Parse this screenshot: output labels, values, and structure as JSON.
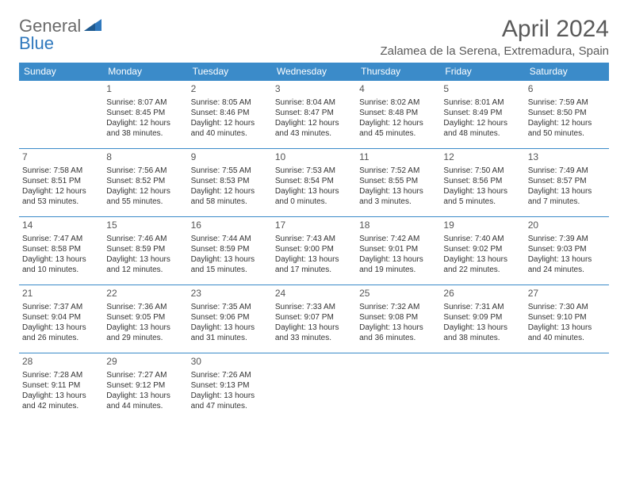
{
  "brand": {
    "part1": "General",
    "part2": "Blue"
  },
  "logo_color": "#2f78bd",
  "title": "April 2024",
  "location": "Zalamea de la Serena, Extremadura, Spain",
  "header_bg": "#3b8bc9",
  "header_fg": "#ffffff",
  "border_color": "#3b8bc9",
  "text_color": "#333333",
  "weekdays": [
    "Sunday",
    "Monday",
    "Tuesday",
    "Wednesday",
    "Thursday",
    "Friday",
    "Saturday"
  ],
  "weeks": [
    [
      null,
      {
        "d": "1",
        "sr": "Sunrise: 8:07 AM",
        "ss": "Sunset: 8:45 PM",
        "dl1": "Daylight: 12 hours",
        "dl2": "and 38 minutes."
      },
      {
        "d": "2",
        "sr": "Sunrise: 8:05 AM",
        "ss": "Sunset: 8:46 PM",
        "dl1": "Daylight: 12 hours",
        "dl2": "and 40 minutes."
      },
      {
        "d": "3",
        "sr": "Sunrise: 8:04 AM",
        "ss": "Sunset: 8:47 PM",
        "dl1": "Daylight: 12 hours",
        "dl2": "and 43 minutes."
      },
      {
        "d": "4",
        "sr": "Sunrise: 8:02 AM",
        "ss": "Sunset: 8:48 PM",
        "dl1": "Daylight: 12 hours",
        "dl2": "and 45 minutes."
      },
      {
        "d": "5",
        "sr": "Sunrise: 8:01 AM",
        "ss": "Sunset: 8:49 PM",
        "dl1": "Daylight: 12 hours",
        "dl2": "and 48 minutes."
      },
      {
        "d": "6",
        "sr": "Sunrise: 7:59 AM",
        "ss": "Sunset: 8:50 PM",
        "dl1": "Daylight: 12 hours",
        "dl2": "and 50 minutes."
      }
    ],
    [
      {
        "d": "7",
        "sr": "Sunrise: 7:58 AM",
        "ss": "Sunset: 8:51 PM",
        "dl1": "Daylight: 12 hours",
        "dl2": "and 53 minutes."
      },
      {
        "d": "8",
        "sr": "Sunrise: 7:56 AM",
        "ss": "Sunset: 8:52 PM",
        "dl1": "Daylight: 12 hours",
        "dl2": "and 55 minutes."
      },
      {
        "d": "9",
        "sr": "Sunrise: 7:55 AM",
        "ss": "Sunset: 8:53 PM",
        "dl1": "Daylight: 12 hours",
        "dl2": "and 58 minutes."
      },
      {
        "d": "10",
        "sr": "Sunrise: 7:53 AM",
        "ss": "Sunset: 8:54 PM",
        "dl1": "Daylight: 13 hours",
        "dl2": "and 0 minutes."
      },
      {
        "d": "11",
        "sr": "Sunrise: 7:52 AM",
        "ss": "Sunset: 8:55 PM",
        "dl1": "Daylight: 13 hours",
        "dl2": "and 3 minutes."
      },
      {
        "d": "12",
        "sr": "Sunrise: 7:50 AM",
        "ss": "Sunset: 8:56 PM",
        "dl1": "Daylight: 13 hours",
        "dl2": "and 5 minutes."
      },
      {
        "d": "13",
        "sr": "Sunrise: 7:49 AM",
        "ss": "Sunset: 8:57 PM",
        "dl1": "Daylight: 13 hours",
        "dl2": "and 7 minutes."
      }
    ],
    [
      {
        "d": "14",
        "sr": "Sunrise: 7:47 AM",
        "ss": "Sunset: 8:58 PM",
        "dl1": "Daylight: 13 hours",
        "dl2": "and 10 minutes."
      },
      {
        "d": "15",
        "sr": "Sunrise: 7:46 AM",
        "ss": "Sunset: 8:59 PM",
        "dl1": "Daylight: 13 hours",
        "dl2": "and 12 minutes."
      },
      {
        "d": "16",
        "sr": "Sunrise: 7:44 AM",
        "ss": "Sunset: 8:59 PM",
        "dl1": "Daylight: 13 hours",
        "dl2": "and 15 minutes."
      },
      {
        "d": "17",
        "sr": "Sunrise: 7:43 AM",
        "ss": "Sunset: 9:00 PM",
        "dl1": "Daylight: 13 hours",
        "dl2": "and 17 minutes."
      },
      {
        "d": "18",
        "sr": "Sunrise: 7:42 AM",
        "ss": "Sunset: 9:01 PM",
        "dl1": "Daylight: 13 hours",
        "dl2": "and 19 minutes."
      },
      {
        "d": "19",
        "sr": "Sunrise: 7:40 AM",
        "ss": "Sunset: 9:02 PM",
        "dl1": "Daylight: 13 hours",
        "dl2": "and 22 minutes."
      },
      {
        "d": "20",
        "sr": "Sunrise: 7:39 AM",
        "ss": "Sunset: 9:03 PM",
        "dl1": "Daylight: 13 hours",
        "dl2": "and 24 minutes."
      }
    ],
    [
      {
        "d": "21",
        "sr": "Sunrise: 7:37 AM",
        "ss": "Sunset: 9:04 PM",
        "dl1": "Daylight: 13 hours",
        "dl2": "and 26 minutes."
      },
      {
        "d": "22",
        "sr": "Sunrise: 7:36 AM",
        "ss": "Sunset: 9:05 PM",
        "dl1": "Daylight: 13 hours",
        "dl2": "and 29 minutes."
      },
      {
        "d": "23",
        "sr": "Sunrise: 7:35 AM",
        "ss": "Sunset: 9:06 PM",
        "dl1": "Daylight: 13 hours",
        "dl2": "and 31 minutes."
      },
      {
        "d": "24",
        "sr": "Sunrise: 7:33 AM",
        "ss": "Sunset: 9:07 PM",
        "dl1": "Daylight: 13 hours",
        "dl2": "and 33 minutes."
      },
      {
        "d": "25",
        "sr": "Sunrise: 7:32 AM",
        "ss": "Sunset: 9:08 PM",
        "dl1": "Daylight: 13 hours",
        "dl2": "and 36 minutes."
      },
      {
        "d": "26",
        "sr": "Sunrise: 7:31 AM",
        "ss": "Sunset: 9:09 PM",
        "dl1": "Daylight: 13 hours",
        "dl2": "and 38 minutes."
      },
      {
        "d": "27",
        "sr": "Sunrise: 7:30 AM",
        "ss": "Sunset: 9:10 PM",
        "dl1": "Daylight: 13 hours",
        "dl2": "and 40 minutes."
      }
    ],
    [
      {
        "d": "28",
        "sr": "Sunrise: 7:28 AM",
        "ss": "Sunset: 9:11 PM",
        "dl1": "Daylight: 13 hours",
        "dl2": "and 42 minutes."
      },
      {
        "d": "29",
        "sr": "Sunrise: 7:27 AM",
        "ss": "Sunset: 9:12 PM",
        "dl1": "Daylight: 13 hours",
        "dl2": "and 44 minutes."
      },
      {
        "d": "30",
        "sr": "Sunrise: 7:26 AM",
        "ss": "Sunset: 9:13 PM",
        "dl1": "Daylight: 13 hours",
        "dl2": "and 47 minutes."
      },
      null,
      null,
      null,
      null
    ]
  ]
}
